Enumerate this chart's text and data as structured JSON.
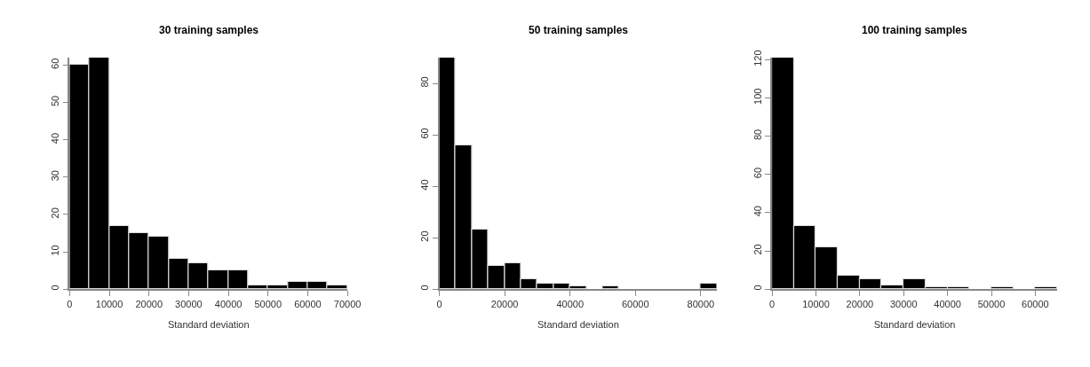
{
  "chart_data": [
    {
      "type": "histogram",
      "title": "30 training samples",
      "xlabel": "Standard deviation",
      "color": "#000000",
      "bins": [
        0,
        5000,
        10000,
        15000,
        20000,
        25000,
        30000,
        35000,
        40000,
        45000,
        50000,
        55000,
        60000,
        65000,
        70000
      ],
      "values": [
        60,
        62,
        17,
        15,
        14,
        8,
        7,
        5,
        5,
        1,
        1,
        2,
        2,
        1
      ],
      "xlim": [
        0,
        70000
      ],
      "xticks": [
        0,
        10000,
        20000,
        30000,
        40000,
        50000,
        60000,
        70000
      ],
      "ylim": [
        0,
        62
      ],
      "yticks": [
        0,
        10,
        20,
        30,
        40,
        50,
        60
      ]
    },
    {
      "type": "histogram",
      "title": "50 training samples",
      "xlabel": "Standard deviation",
      "color": "#000000",
      "bins": [
        0,
        5000,
        10000,
        15000,
        20000,
        25000,
        30000,
        35000,
        40000,
        45000,
        50000,
        55000,
        60000,
        65000,
        70000,
        75000,
        80000,
        85000
      ],
      "values": [
        90,
        56,
        23,
        9,
        10,
        4,
        2,
        2,
        1,
        0,
        1,
        0,
        0,
        0,
        0,
        0,
        2
      ],
      "xlim": [
        0,
        85000
      ],
      "xticks": [
        0,
        20000,
        40000,
        60000,
        80000
      ],
      "ylim": [
        0,
        90
      ],
      "yticks": [
        0,
        20,
        40,
        60,
        80
      ]
    },
    {
      "type": "histogram",
      "title": "100 training samples",
      "xlabel": "Standard deviation",
      "color": "#000000",
      "bins": [
        0,
        5000,
        10000,
        15000,
        20000,
        25000,
        30000,
        35000,
        40000,
        45000,
        50000,
        55000,
        60000,
        65000
      ],
      "values": [
        121,
        33,
        22,
        7,
        5,
        2,
        5,
        1,
        1,
        0,
        1,
        0,
        1
      ],
      "xlim": [
        0,
        65000
      ],
      "xticks": [
        0,
        10000,
        20000,
        30000,
        40000,
        50000,
        60000
      ],
      "ylim": [
        0,
        121
      ],
      "yticks": [
        0,
        20,
        40,
        60,
        80,
        100,
        120
      ]
    }
  ]
}
